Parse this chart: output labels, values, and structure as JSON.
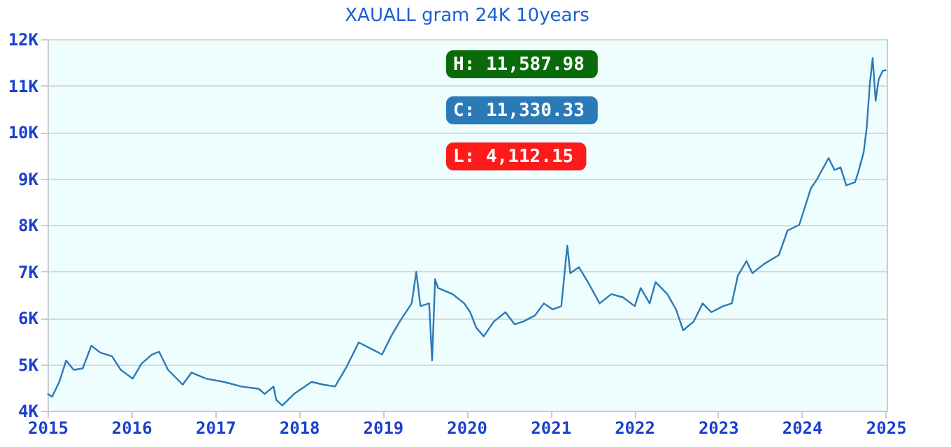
{
  "chart_data": {
    "type": "line",
    "title": "XAUALL gram 24K 10years",
    "x": [
      "2015-01-01",
      "2015-01-21",
      "2015-02-21",
      "2015-03-23",
      "2015-04-25",
      "2015-06-03",
      "2015-07-11",
      "2015-08-19",
      "2015-10-09",
      "2015-11-16",
      "2016-01-07",
      "2016-02-14",
      "2016-03-31",
      "2016-05-01",
      "2016-06-09",
      "2016-08-12",
      "2016-09-19",
      "2016-11-22",
      "2017-02-07",
      "2017-04-24",
      "2017-07-10",
      "2017-08-04",
      "2017-09-12",
      "2017-09-24",
      "2017-10-20",
      "2017-12-10",
      "2018-02-25",
      "2018-04-17",
      "2018-06-07",
      "2018-07-28",
      "2018-09-18",
      "2018-11-08",
      "2018-12-29",
      "2019-02-06",
      "2019-03-16",
      "2019-05-07",
      "2019-05-27",
      "2019-06-14",
      "2019-07-22",
      "2019-08-04",
      "2019-08-17",
      "2019-08-30",
      "2019-11-01",
      "2019-12-22",
      "2020-01-17",
      "2020-02-12",
      "2020-03-16",
      "2020-04-29",
      "2020-06-19",
      "2020-07-28",
      "2020-09-04",
      "2020-10-25",
      "2020-12-03",
      "2021-01-10",
      "2021-02-17",
      "2021-03-15",
      "2021-03-28",
      "2021-05-05",
      "2021-06-13",
      "2021-08-03",
      "2021-09-23",
      "2021-11-13",
      "2022-01-03",
      "2022-01-29",
      "2022-03-09",
      "2022-04-04",
      "2022-05-25",
      "2022-07-02",
      "2022-08-02",
      "2022-09-17",
      "2022-10-26",
      "2022-12-03",
      "2023-01-23",
      "2023-03-02",
      "2023-03-28",
      "2023-05-05",
      "2023-05-31",
      "2023-07-21",
      "2023-09-23",
      "2023-10-31",
      "2023-12-21",
      "2024-02-10",
      "2024-03-07",
      "2024-04-27",
      "2024-05-23",
      "2024-06-18",
      "2024-07-13",
      "2024-08-20",
      "2024-09-02",
      "2024-09-27",
      "2024-10-10",
      "2024-10-23",
      "2024-11-05",
      "2024-11-18",
      "2024-12-01",
      "2024-12-19",
      "2025-01-03"
    ],
    "series": [
      {
        "color": "#2a7ab8",
        "values": [
          4360,
          4300,
          4620,
          5080,
          4880,
          4910,
          5400,
          5250,
          5170,
          4880,
          4690,
          5010,
          5210,
          5270,
          4880,
          4560,
          4820,
          4690,
          4620,
          4520,
          4470,
          4360,
          4520,
          4230,
          4110,
          4360,
          4620,
          4560,
          4520,
          4950,
          5470,
          5340,
          5210,
          5600,
          5920,
          6310,
          6990,
          6250,
          6310,
          5080,
          6830,
          6640,
          6510,
          6310,
          6120,
          5790,
          5600,
          5920,
          6120,
          5860,
          5920,
          6050,
          6310,
          6180,
          6250,
          7550,
          6960,
          7090,
          6770,
          6310,
          6510,
          6440,
          6250,
          6640,
          6310,
          6770,
          6510,
          6180,
          5730,
          5920,
          6310,
          6120,
          6250,
          6310,
          6900,
          7220,
          6960,
          7160,
          7350,
          7880,
          8000,
          8790,
          8980,
          9440,
          9180,
          9240,
          8850,
          8920,
          9110,
          9570,
          10090,
          11000,
          11590,
          10670,
          11130,
          11320,
          11330
        ]
      }
    ],
    "xlim": [
      "2015-01-01",
      "2025-01-05"
    ],
    "xticks": [
      "2015",
      "2016",
      "2017",
      "2018",
      "2019",
      "2020",
      "2021",
      "2022",
      "2023",
      "2024",
      "2025"
    ],
    "ylim": [
      4000,
      12000
    ],
    "yticks": [
      {
        "value": 4000,
        "label": "4K"
      },
      {
        "value": 5000,
        "label": "5K"
      },
      {
        "value": 6000,
        "label": "6K"
      },
      {
        "value": 7000,
        "label": "7K"
      },
      {
        "value": 8000,
        "label": "8K"
      },
      {
        "value": 9000,
        "label": "9K"
      },
      {
        "value": 10000,
        "label": "10K"
      },
      {
        "value": 11000,
        "label": "11K"
      },
      {
        "value": 12000,
        "label": "12K"
      }
    ],
    "grid": "y",
    "marker": "none",
    "line_style": "solid",
    "annotations": [
      "H: 11,587.98",
      "C: 11,330.33",
      "L: 4,112.15"
    ]
  }
}
